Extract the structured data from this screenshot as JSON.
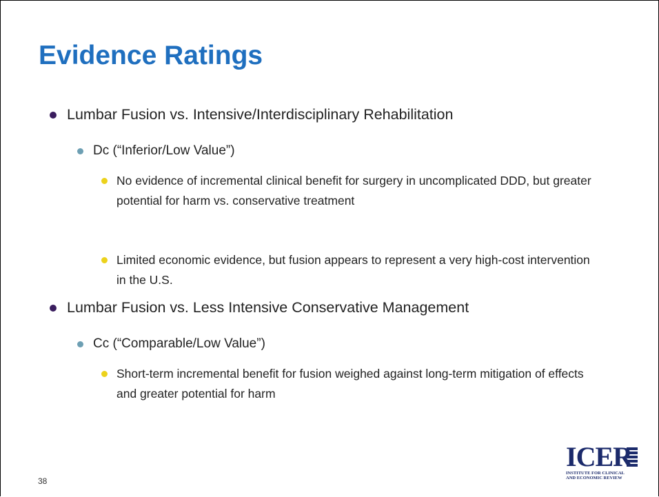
{
  "title": "Evidence Ratings",
  "items": [
    {
      "text": "Lumbar Fusion vs. Intensive/Interdisciplinary Rehabilitation",
      "children": [
        {
          "text": "Dc (“Inferior/Low Value”)",
          "children": [
            {
              "text": "No evidence of incremental clinical benefit for surgery in uncomplicated DDD, but greater potential for harm vs. conservative treatment"
            },
            {
              "text": "Limited economic evidence, but fusion appears to represent a very high-cost intervention in the U.S."
            }
          ]
        }
      ]
    },
    {
      "text": "Lumbar Fusion vs. Less Intensive Conservative Management",
      "children": [
        {
          "text": "Cc (“Comparable/Low Value”)",
          "children": [
            {
              "text": "Short-term incremental benefit for fusion weighed against long-term mitigation of effects and greater potential for harm"
            }
          ]
        }
      ]
    }
  ],
  "page_number": "38",
  "logo": {
    "name": "ICER",
    "tagline_1": "INSTITUTE FOR CLINICAL",
    "tagline_2": "AND ECONOMIC REVIEW"
  }
}
